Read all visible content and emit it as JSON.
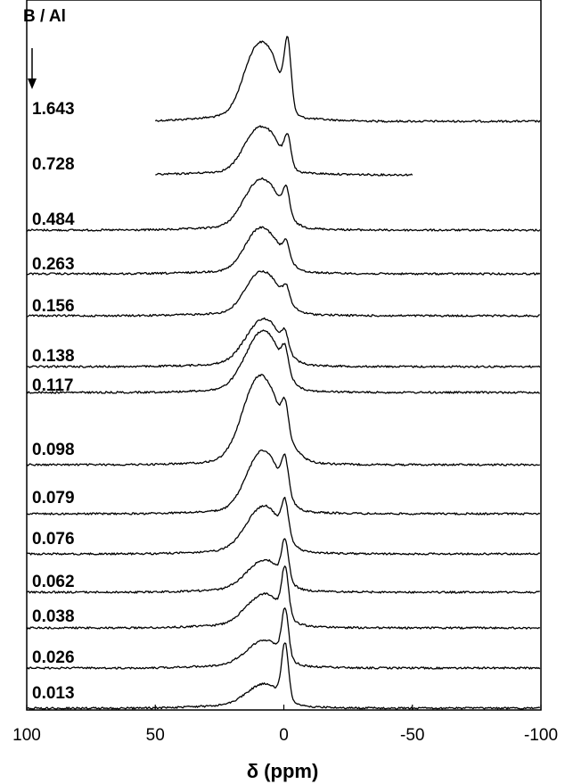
{
  "chart_data": {
    "type": "line",
    "title": "",
    "xlabel": "δ (ppm)",
    "ylabel": "",
    "xlim": [
      100,
      -100
    ],
    "x_ticks": [
      "100",
      "50",
      "0",
      "-50",
      "-100"
    ],
    "legend_title": "B / Al",
    "grid": false,
    "series": [
      {
        "name": "1.643",
        "peaks": [
          {
            "x": 11,
            "height": 0.6,
            "width": 5
          },
          {
            "x": -1.5,
            "height": 0.62,
            "width": 1.3
          },
          {
            "x": 4,
            "height": 0.35,
            "width": 4
          }
        ],
        "x_range": [
          50,
          -100
        ]
      },
      {
        "name": "0.728",
        "peaks": [
          {
            "x": 11,
            "height": 0.6,
            "width": 5
          },
          {
            "x": -1.5,
            "height": 0.44,
            "width": 1.3
          },
          {
            "x": 4,
            "height": 0.35,
            "width": 4
          }
        ],
        "x_range": [
          50,
          -50
        ]
      },
      {
        "name": "0.484",
        "peaks": [
          {
            "x": 11,
            "height": 0.62,
            "width": 5.5
          },
          {
            "x": -1.0,
            "height": 0.42,
            "width": 1.2
          },
          {
            "x": 4,
            "height": 0.38,
            "width": 5
          }
        ],
        "x_range": [
          100,
          -100
        ]
      },
      {
        "name": "0.263",
        "peaks": [
          {
            "x": 11,
            "height": 0.58,
            "width": 5
          },
          {
            "x": -1.0,
            "height": 0.3,
            "width": 1.2
          },
          {
            "x": 4,
            "height": 0.4,
            "width": 5
          }
        ],
        "x_range": [
          100,
          -100
        ]
      },
      {
        "name": "0.156",
        "peaks": [
          {
            "x": 11,
            "height": 0.56,
            "width": 5
          },
          {
            "x": -1.0,
            "height": 0.25,
            "width": 1.2
          },
          {
            "x": 4,
            "height": 0.42,
            "width": 5
          }
        ],
        "x_range": [
          100,
          -100
        ]
      },
      {
        "name": "0.138",
        "peaks": [
          {
            "x": 10,
            "height": 0.65,
            "width": 6
          },
          {
            "x": -0.5,
            "height": 0.3,
            "width": 1.2
          },
          {
            "x": 4,
            "height": 0.35,
            "width": 5
          }
        ],
        "x_range": [
          100,
          -100
        ]
      },
      {
        "name": "0.117",
        "peaks": [
          {
            "x": 10,
            "height": 0.85,
            "width": 6
          },
          {
            "x": -0.5,
            "height": 0.4,
            "width": 1.2
          },
          {
            "x": 4,
            "height": 0.4,
            "width": 5
          }
        ],
        "x_range": [
          100,
          -100
        ]
      },
      {
        "name": "0.098",
        "peaks": [
          {
            "x": 11,
            "height": 1.0,
            "width": 6
          },
          {
            "x": -0.5,
            "height": 0.4,
            "width": 1.2
          },
          {
            "x": 4,
            "height": 0.55,
            "width": 6
          }
        ],
        "x_range": [
          100,
          -100
        ]
      },
      {
        "name": "0.079",
        "peaks": [
          {
            "x": 10,
            "height": 0.78,
            "width": 5.5
          },
          {
            "x": -0.5,
            "height": 0.55,
            "width": 1.3
          },
          {
            "x": 4,
            "height": 0.4,
            "width": 5
          }
        ],
        "x_range": [
          100,
          -100
        ]
      },
      {
        "name": "0.076",
        "peaks": [
          {
            "x": 10,
            "height": 0.62,
            "width": 6
          },
          {
            "x": -0.5,
            "height": 0.62,
            "width": 1.3
          },
          {
            "x": 4,
            "height": 0.35,
            "width": 5
          }
        ],
        "x_range": [
          100,
          -100
        ]
      },
      {
        "name": "0.062",
        "peaks": [
          {
            "x": 10,
            "height": 0.42,
            "width": 6
          },
          {
            "x": -0.5,
            "height": 0.78,
            "width": 1.3
          },
          {
            "x": 4,
            "height": 0.28,
            "width": 5
          }
        ],
        "x_range": [
          100,
          -100
        ]
      },
      {
        "name": "0.038",
        "peaks": [
          {
            "x": 10,
            "height": 0.4,
            "width": 6
          },
          {
            "x": -0.5,
            "height": 0.82,
            "width": 1.3
          },
          {
            "x": 4,
            "height": 0.25,
            "width": 5
          }
        ],
        "x_range": [
          100,
          -100
        ]
      },
      {
        "name": "0.026",
        "peaks": [
          {
            "x": 10,
            "height": 0.34,
            "width": 6
          },
          {
            "x": -0.5,
            "height": 0.9,
            "width": 1.3
          },
          {
            "x": 4,
            "height": 0.22,
            "width": 5
          }
        ],
        "x_range": [
          100,
          -100
        ]
      },
      {
        "name": "0.013",
        "peaks": [
          {
            "x": 10,
            "height": 0.28,
            "width": 6
          },
          {
            "x": -0.5,
            "height": 1.0,
            "width": 1.3
          },
          {
            "x": 4,
            "height": 0.18,
            "width": 5
          }
        ],
        "x_range": [
          100,
          -100
        ]
      }
    ]
  }
}
